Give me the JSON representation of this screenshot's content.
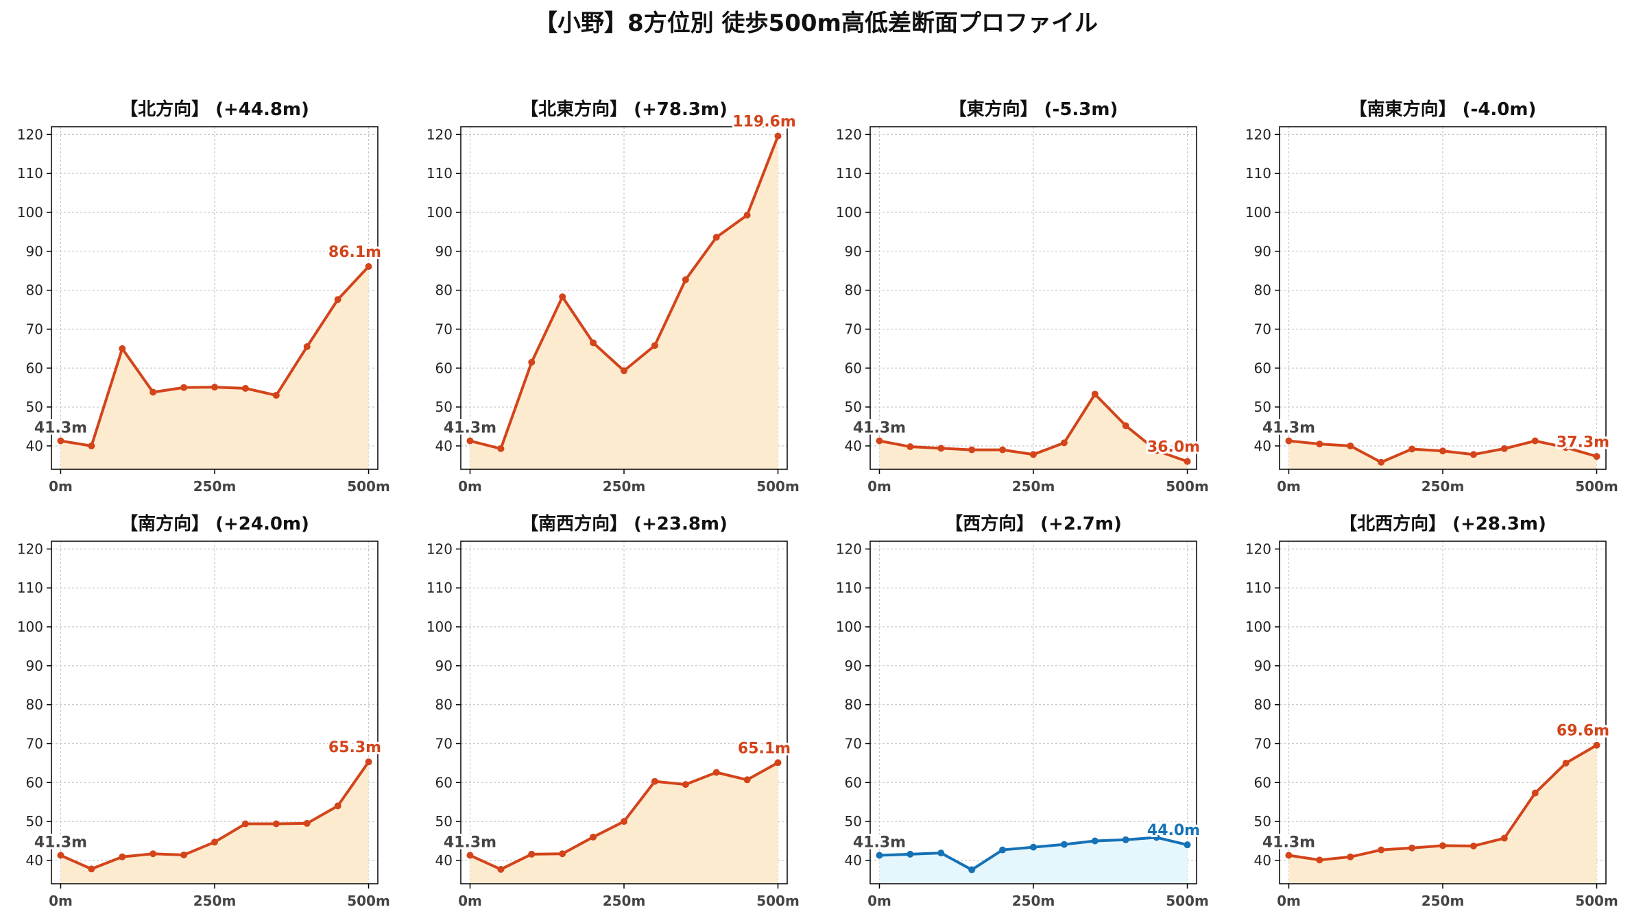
{
  "title": "【小野】8方位別 徒歩500m高低差断面プロファイル",
  "colors": {
    "rise_line": "#d3441a",
    "rise_fill": "#fdebd0",
    "flat_line": "#1572b6",
    "flat_fill": "#e6f6fd",
    "start_label": "#444444",
    "axis": "#000000",
    "grid": "#c8c8c8"
  },
  "chart_data": [
    {
      "type": "line",
      "title": "【北方向】 (+44.8m)",
      "color_scheme": "rise",
      "x": [
        0,
        50,
        100,
        150,
        200,
        250,
        300,
        350,
        400,
        450,
        500
      ],
      "values": [
        41.3,
        40.0,
        65.0,
        53.8,
        55.0,
        55.1,
        54.8,
        53.0,
        65.5,
        77.6,
        86.1
      ],
      "start_label": "41.3m",
      "end_label": "86.1m",
      "xticks": [
        "0m",
        "250m",
        "500m"
      ],
      "yticks": [
        "40",
        "50",
        "60",
        "70",
        "80",
        "90",
        "100",
        "110",
        "120"
      ],
      "ylim": [
        34,
        122
      ],
      "grid": true
    },
    {
      "type": "line",
      "title": "【北東方向】 (+78.3m)",
      "color_scheme": "rise",
      "x": [
        0,
        50,
        100,
        150,
        200,
        250,
        300,
        350,
        400,
        450,
        500
      ],
      "values": [
        41.3,
        39.3,
        61.5,
        78.3,
        66.5,
        59.3,
        65.8,
        82.7,
        93.6,
        99.3,
        119.6
      ],
      "start_label": "41.3m",
      "end_label": "119.6m",
      "xticks": [
        "0m",
        "250m",
        "500m"
      ],
      "yticks": [
        "40",
        "50",
        "60",
        "70",
        "80",
        "90",
        "100",
        "110",
        "120"
      ],
      "ylim": [
        34,
        122
      ],
      "grid": true
    },
    {
      "type": "line",
      "title": "【東方向】 (-5.3m)",
      "color_scheme": "rise",
      "x": [
        0,
        50,
        100,
        150,
        200,
        250,
        300,
        350,
        400,
        450,
        500
      ],
      "values": [
        41.3,
        39.8,
        39.4,
        39.0,
        39.0,
        37.8,
        40.8,
        53.3,
        45.2,
        38.8,
        36.0
      ],
      "start_label": "41.3m",
      "end_label": "36.0m",
      "xticks": [
        "0m",
        "250m",
        "500m"
      ],
      "yticks": [
        "40",
        "50",
        "60",
        "70",
        "80",
        "90",
        "100",
        "110",
        "120"
      ],
      "ylim": [
        34,
        122
      ],
      "grid": true
    },
    {
      "type": "line",
      "title": "【南東方向】 (-4.0m)",
      "color_scheme": "rise",
      "x": [
        0,
        50,
        100,
        150,
        200,
        250,
        300,
        350,
        400,
        450,
        500
      ],
      "values": [
        41.3,
        40.5,
        40.0,
        35.8,
        39.2,
        38.7,
        37.8,
        39.3,
        41.3,
        39.6,
        37.3
      ],
      "start_label": "41.3m",
      "end_label": "37.3m",
      "xticks": [
        "0m",
        "250m",
        "500m"
      ],
      "yticks": [
        "40",
        "50",
        "60",
        "70",
        "80",
        "90",
        "100",
        "110",
        "120"
      ],
      "ylim": [
        34,
        122
      ],
      "grid": true
    },
    {
      "type": "line",
      "title": "【南方向】 (+24.0m)",
      "color_scheme": "rise",
      "x": [
        0,
        50,
        100,
        150,
        200,
        250,
        300,
        350,
        400,
        450,
        500
      ],
      "values": [
        41.3,
        37.8,
        40.9,
        41.7,
        41.4,
        44.7,
        49.4,
        49.4,
        49.5,
        54.0,
        65.3
      ],
      "start_label": "41.3m",
      "end_label": "65.3m",
      "xticks": [
        "0m",
        "250m",
        "500m"
      ],
      "yticks": [
        "40",
        "50",
        "60",
        "70",
        "80",
        "90",
        "100",
        "110",
        "120"
      ],
      "ylim": [
        34,
        122
      ],
      "grid": true
    },
    {
      "type": "line",
      "title": "【南西方向】 (+23.8m)",
      "color_scheme": "rise",
      "x": [
        0,
        50,
        100,
        150,
        200,
        250,
        300,
        350,
        400,
        450,
        500
      ],
      "values": [
        41.3,
        37.7,
        41.6,
        41.7,
        46.0,
        50.0,
        60.3,
        59.5,
        62.6,
        60.7,
        65.1
      ],
      "start_label": "41.3m",
      "end_label": "65.1m",
      "xticks": [
        "0m",
        "250m",
        "500m"
      ],
      "yticks": [
        "40",
        "50",
        "60",
        "70",
        "80",
        "90",
        "100",
        "110",
        "120"
      ],
      "ylim": [
        34,
        122
      ],
      "grid": true
    },
    {
      "type": "line",
      "title": "【西方向】 (+2.7m)",
      "color_scheme": "flat",
      "x": [
        0,
        50,
        100,
        150,
        200,
        250,
        300,
        350,
        400,
        450,
        500
      ],
      "values": [
        41.3,
        41.6,
        41.9,
        37.6,
        42.7,
        43.4,
        44.1,
        45.0,
        45.3,
        45.9,
        44.0
      ],
      "start_label": "41.3m",
      "end_label": "44.0m",
      "xticks": [
        "0m",
        "250m",
        "500m"
      ],
      "yticks": [
        "40",
        "50",
        "60",
        "70",
        "80",
        "90",
        "100",
        "110",
        "120"
      ],
      "ylim": [
        34,
        122
      ],
      "grid": true
    },
    {
      "type": "line",
      "title": "【北西方向】 (+28.3m)",
      "color_scheme": "rise",
      "x": [
        0,
        50,
        100,
        150,
        200,
        250,
        300,
        350,
        400,
        450,
        500
      ],
      "values": [
        41.3,
        40.1,
        40.9,
        42.7,
        43.2,
        43.8,
        43.7,
        45.7,
        57.3,
        65.0,
        69.6
      ],
      "start_label": "41.3m",
      "end_label": "69.6m",
      "xticks": [
        "0m",
        "250m",
        "500m"
      ],
      "yticks": [
        "40",
        "50",
        "60",
        "70",
        "80",
        "90",
        "100",
        "110",
        "120"
      ],
      "ylim": [
        34,
        122
      ],
      "grid": true
    }
  ]
}
